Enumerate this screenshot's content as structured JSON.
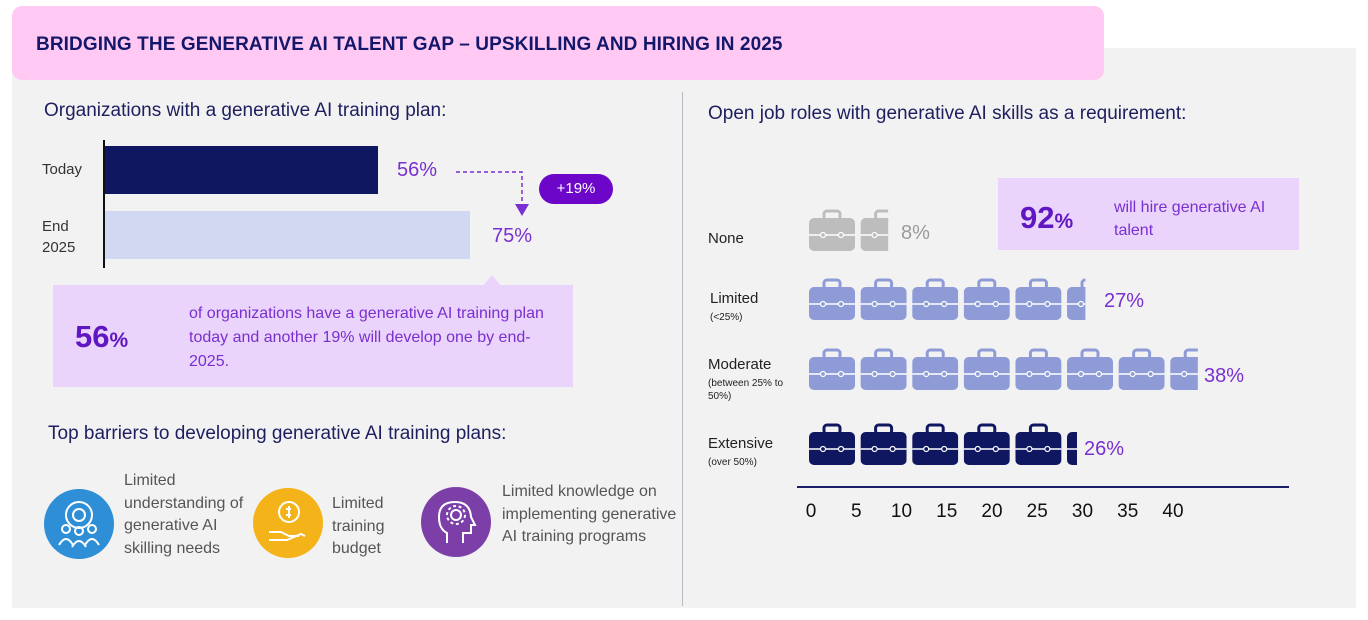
{
  "title": "BRIDGING THE GENERATIVE AI TALENT GAP – UPSKILLING AND HIRING IN 2025",
  "training": {
    "heading": "Organizations with a generative AI training plan:",
    "delta_label": "+19%",
    "callout_value": "56",
    "callout_unit": "%",
    "callout_text": "of organizations have a generative AI training plan today and another 19% will develop one by end-2025."
  },
  "barriers": {
    "heading": "Top barriers to developing generative AI training plans:",
    "items": [
      {
        "text": "Limited understanding of generative AI skilling needs",
        "icon": "team-gear-icon",
        "color": "#2f8fd6"
      },
      {
        "text": "Limited training budget",
        "icon": "hand-coin-icon",
        "color": "#f4b419"
      },
      {
        "text": "Limited knowledge on implementing generative AI training programs",
        "icon": "head-gear-icon",
        "color": "#7b3fa7"
      }
    ]
  },
  "jobs": {
    "heading": "Open job roles with generative AI skills as a requirement:",
    "hire_value": "92",
    "hire_unit": "%",
    "hire_text": "will hire generative AI talent"
  },
  "colors": {
    "dark_navy": "#0f1760",
    "light_lavender": "#d3d8f2",
    "periwinkle": "#8e9bd6",
    "grey": "#bdbdbd",
    "accent_purple": "#7a2fd0"
  },
  "chart_data": [
    {
      "type": "bar",
      "orientation": "horizontal",
      "categories": [
        "Today",
        "End 2025"
      ],
      "values": [
        56,
        75
      ],
      "value_labels": [
        "56%",
        "75%"
      ],
      "colors": [
        "#0f1760",
        "#d3d8f2"
      ],
      "xlim": [
        0,
        100
      ]
    },
    {
      "type": "bar",
      "orientation": "horizontal",
      "categories": [
        "None",
        "Limited",
        "Moderate",
        "Extensive"
      ],
      "category_notes": [
        "",
        "(<25%)",
        "(between 25% to 50%)",
        "(over 50%)"
      ],
      "values": [
        8,
        27,
        38,
        26
      ],
      "value_labels": [
        "8%",
        "27%",
        "38%",
        "26%"
      ],
      "unit_per_icon": 5,
      "colors": [
        "#bdbdbd",
        "#8e9bd6",
        "#8e9bd6",
        "#0f1760"
      ],
      "x_ticks": [
        0,
        5,
        10,
        15,
        20,
        25,
        30,
        35,
        40
      ],
      "xlim": [
        0,
        40
      ],
      "icon": "briefcase-icon"
    }
  ]
}
